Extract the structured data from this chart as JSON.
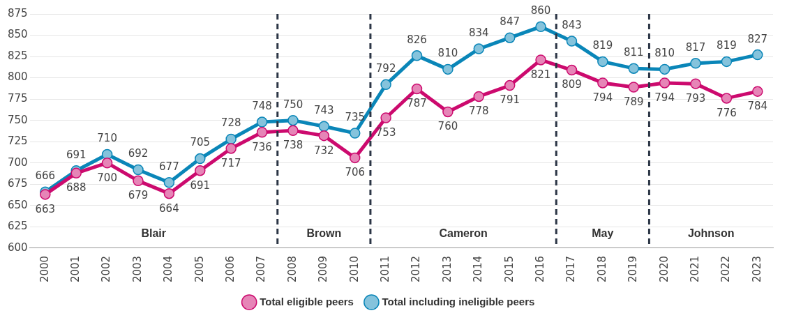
{
  "chart_data": {
    "type": "line",
    "x": [
      2000,
      2001,
      2002,
      2003,
      2004,
      2005,
      2006,
      2007,
      2008,
      2009,
      2010,
      2011,
      2012,
      2013,
      2014,
      2015,
      2016,
      2017,
      2018,
      2019,
      2020,
      2021,
      2022,
      2023
    ],
    "xlim": [
      1999.5,
      2023.5
    ],
    "xticks": [
      2000,
      2001,
      2002,
      2003,
      2004,
      2005,
      2006,
      2007,
      2008,
      2009,
      2010,
      2011,
      2012,
      2013,
      2014,
      2015,
      2016,
      2017,
      2018,
      2019,
      2020,
      2021,
      2022,
      2023
    ],
    "ylim": [
      600,
      875
    ],
    "yticks": [
      600,
      625,
      650,
      675,
      700,
      725,
      750,
      775,
      800,
      825,
      850,
      875
    ],
    "series": [
      {
        "name": "Total eligible peers",
        "color": "#cc0a6e",
        "values": [
          663,
          688,
          700,
          679,
          664,
          691,
          717,
          736,
          738,
          732,
          706,
          753,
          787,
          760,
          778,
          791,
          821,
          809,
          794,
          789,
          794,
          793,
          776,
          784
        ]
      },
      {
        "name": "Total including ineligible peers",
        "color": "#0a86b8",
        "values": [
          666,
          691,
          710,
          692,
          677,
          705,
          728,
          748,
          750,
          743,
          735,
          792,
          826,
          810,
          834,
          847,
          860,
          843,
          819,
          811,
          810,
          817,
          819,
          827
        ]
      }
    ],
    "ref_lines": [
      {
        "axis": "x",
        "value": 2007.5,
        "color": "#2b3545",
        "line_style": "dashed"
      },
      {
        "axis": "x",
        "value": 2010.5,
        "color": "#2b3545",
        "line_style": "dashed"
      },
      {
        "axis": "x",
        "value": 2016.5,
        "color": "#2b3545",
        "line_style": "dashed"
      },
      {
        "axis": "x",
        "value": 2019.5,
        "color": "#2b3545",
        "line_style": "dashed"
      }
    ],
    "annotations": [
      "Blair",
      "Brown",
      "Cameron",
      "May",
      "Johnson"
    ],
    "data_labels": true,
    "grid": "y",
    "legend": "bottom",
    "marker": "circle",
    "line_style": "solid"
  }
}
